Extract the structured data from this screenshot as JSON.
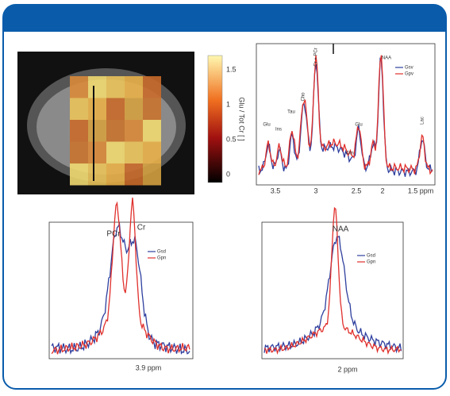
{
  "figure": {
    "mri": {
      "colorbar_label": "Glu / Tot Cr [ ]",
      "colorbar_ticks": [
        "1.5",
        "1",
        "0.5",
        "0"
      ]
    },
    "spectrum": {
      "peaks": [
        "Glu",
        "Ins",
        "Tau",
        "Cho",
        "Cr + PCr",
        "NAA",
        "Glu",
        "Gln",
        "Lac"
      ],
      "legend": [
        "Gsv",
        "Gpv"
      ],
      "xticks": [
        "3.5",
        "3",
        "2.5",
        "2",
        "1.5 ppm"
      ]
    },
    "pcr_cr": {
      "peaks": [
        "PCr",
        "Cr"
      ],
      "legend": [
        "Gsd",
        "Gpn"
      ],
      "xlabel": "3.9 ppm"
    },
    "naa": {
      "peaks": [
        "NAA"
      ],
      "legend": [
        "Gsd",
        "Gpn"
      ],
      "xlabel": "2 ppm"
    }
  }
}
